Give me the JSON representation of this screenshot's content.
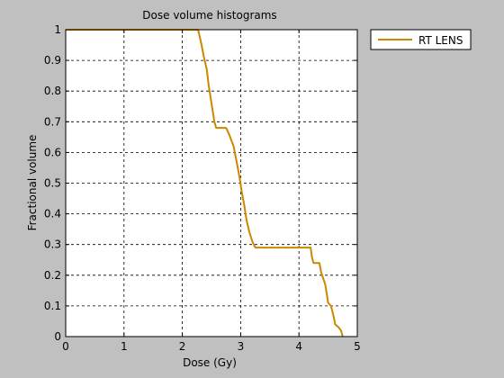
{
  "chart_data": {
    "type": "line",
    "title": "Dose volume histograms",
    "xlabel": "Dose (Gy)",
    "ylabel": "Fractional volume",
    "xlim": [
      0,
      5
    ],
    "ylim": [
      0,
      1
    ],
    "xticks": [
      0,
      1,
      2,
      3,
      4,
      5
    ],
    "yticks": [
      0,
      0.1,
      0.2,
      0.3,
      0.4,
      0.5,
      0.6,
      0.7,
      0.8,
      0.9,
      1
    ],
    "xtick_labels": [
      "0",
      "1",
      "2",
      "3",
      "4",
      "5"
    ],
    "ytick_labels": [
      "0",
      "0.1",
      "0.2",
      "0.3",
      "0.4",
      "0.5",
      "0.6",
      "0.7",
      "0.8",
      "0.9",
      "1"
    ],
    "grid": true,
    "grid_style": "dashed",
    "legend": "top-right, outside plot",
    "background_color": "#c0c0c0",
    "axes_color": "#ffffff",
    "series": [
      {
        "name": "RT LENS",
        "color": "#cc8800",
        "x": [
          0,
          2.27,
          2.33,
          2.37,
          2.42,
          2.45,
          2.5,
          2.55,
          2.58,
          2.65,
          2.75,
          2.8,
          2.88,
          2.93,
          2.98,
          3.02,
          3.06,
          3.1,
          3.15,
          3.2,
          3.25,
          3.3,
          3.6,
          4.2,
          4.22,
          4.25,
          4.35,
          4.38,
          4.45,
          4.5,
          4.55,
          4.6,
          4.62,
          4.68,
          4.72,
          4.75
        ],
        "y": [
          1,
          1,
          0.95,
          0.91,
          0.87,
          0.82,
          0.76,
          0.7,
          0.68,
          0.68,
          0.68,
          0.66,
          0.62,
          0.57,
          0.52,
          0.47,
          0.43,
          0.38,
          0.34,
          0.31,
          0.29,
          0.29,
          0.29,
          0.29,
          0.26,
          0.24,
          0.24,
          0.21,
          0.17,
          0.11,
          0.1,
          0.06,
          0.04,
          0.03,
          0.02,
          0
        ]
      }
    ]
  }
}
